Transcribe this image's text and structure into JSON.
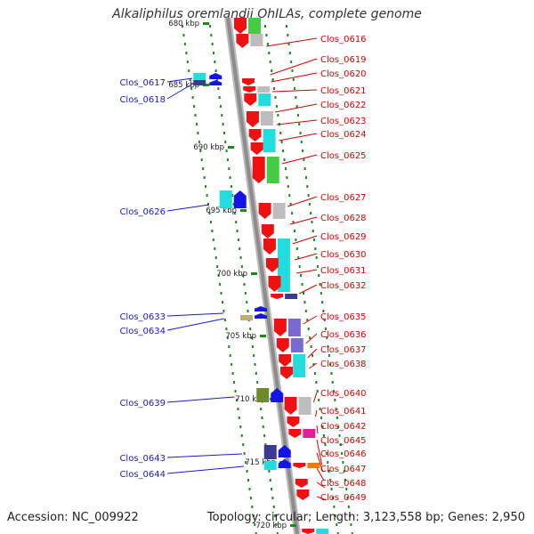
{
  "title": "Alkaliphilus oremlandii OhILAs, complete genome",
  "accession": "Accession: NC_009922",
  "topology": "Topology: circular; Length: 3,123,558 bp; Genes: 2,950",
  "colors": {
    "axis": "#8c8c8c",
    "left_label": "#1a1ad0",
    "right_label": "#dd0000",
    "tick": "#1d8a1d",
    "red": "#ee1111",
    "cyan": "#22dddd",
    "grey": "#bdbdbd",
    "green": "#44cc44",
    "blue": "#1414e6",
    "navy": "#3a3a90",
    "purple": "#7a6ad0",
    "olive": "#6e8a2a",
    "khaki": "#b8b070",
    "magenta": "#e0209a",
    "orange": "#ee7a10"
  },
  "kbp_labels": [
    "680 kbp",
    "685 kbp",
    "690 kbp",
    "695 kbp",
    "700 kbp",
    "705 kbp",
    "710 kbp",
    "715 kbp",
    "720 kbp"
  ],
  "right_labels": [
    "Clos_0616",
    "Clos_0619",
    "Clos_0620",
    "Clos_0621",
    "Clos_0622",
    "Clos_0623",
    "Clos_0624",
    "Clos_0625",
    "Clos_0627",
    "Clos_0628",
    "Clos_0629",
    "Clos_0630",
    "Clos_0631",
    "Clos_0632",
    "Clos_0635",
    "Clos_0636",
    "Clos_0637",
    "Clos_0638",
    "Clos_0640",
    "Clos_0641",
    "Clos_0642",
    "Clos_0645",
    "Clos_0646",
    "Clos_0647",
    "Clos_0648",
    "Clos_0649"
  ],
  "left_labels": [
    "Clos_0617",
    "Clos_0618",
    "Clos_0626",
    "Clos_0633",
    "Clos_0634",
    "Clos_0639",
    "Clos_0643",
    "Clos_0644"
  ]
}
